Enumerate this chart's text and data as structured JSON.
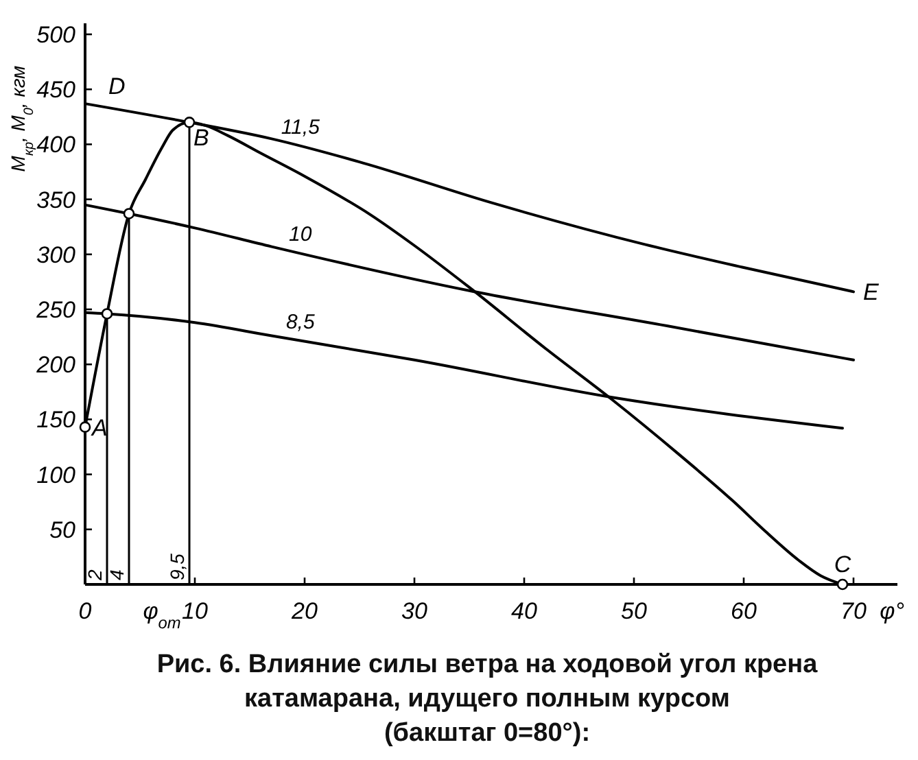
{
  "chart_data": {
    "type": "line",
    "title": "Рис. 6. Влияние силы ветра на ходовой угол крена катамарана, идущего полным курсом",
    "subtitle": "(бакштаг 0=80°):",
    "xlabel": "φ°",
    "ylabel": "M$_{кр}$, M$_{0}$, кгм",
    "xlim": [
      0,
      74
    ],
    "xticks": [
      0,
      {
        "value": 7,
        "label": "φ$_{от}$"
      },
      10,
      20,
      30,
      40,
      50,
      60,
      70
    ],
    "ylim": [
      0,
      510
    ],
    "yticks": [
      50,
      100,
      150,
      200,
      250,
      300,
      350,
      400,
      450,
      500
    ],
    "series": [
      {
        "name": "11,5",
        "color": "#000000",
        "x": [
          0,
          9.5,
          17,
          25,
          37,
          51,
          60,
          70
        ],
        "values": [
          437,
          420,
          405,
          384,
          347,
          309,
          288,
          266
        ]
      },
      {
        "name": "10",
        "color": "#000000",
        "x": [
          0,
          4,
          10,
          17,
          35,
          53,
          70
        ],
        "values": [
          345,
          337,
          324,
          307,
          267,
          235,
          204
        ]
      },
      {
        "name": "8,5",
        "color": "#000000",
        "x": [
          0,
          2,
          10,
          17,
          30,
          48,
          69
        ],
        "values": [
          247,
          246,
          238,
          226,
          204,
          170,
          142
        ]
      },
      {
        "color": "#000000",
        "x": [
          0,
          2,
          4,
          5.5,
          7,
          8,
          9.5,
          11,
          13,
          16,
          20,
          26,
          30,
          35,
          42,
          48,
          54,
          59,
          62,
          65,
          67,
          69
        ],
        "values": [
          143,
          246,
          337,
          368,
          397,
          413,
          420,
          417,
          408,
          392,
          371,
          336,
          308,
          270,
          214,
          168,
          119,
          76,
          48,
          22,
          8,
          0
        ]
      },
      {
        "name": "2",
        "color": "#000000",
        "x": [
          2,
          2
        ],
        "values": [
          0,
          246
        ]
      },
      {
        "name": "4",
        "color": "#000000",
        "x": [
          4,
          4
        ],
        "values": [
          0,
          337
        ]
      },
      {
        "name": "9,5",
        "color": "#000000",
        "x": [
          9.5,
          9.5
        ],
        "values": [
          0,
          420
        ]
      },
      {
        "type": "scatter",
        "marker": "circle",
        "color": "#000000",
        "x": [
          0,
          2,
          4,
          9.5,
          69
        ],
        "values": [
          143,
          246,
          337,
          420,
          0
        ]
      }
    ],
    "annotations": [
      {
        "text": "D",
        "x": 0,
        "y": 437
      },
      {
        "text": "E",
        "x": 70,
        "y": 266
      },
      {
        "text": "A",
        "x": 0,
        "y": 143
      },
      {
        "text": "B",
        "x": 9.5,
        "y": 420
      },
      {
        "text": "C",
        "x": 69,
        "y": 0
      }
    ]
  }
}
